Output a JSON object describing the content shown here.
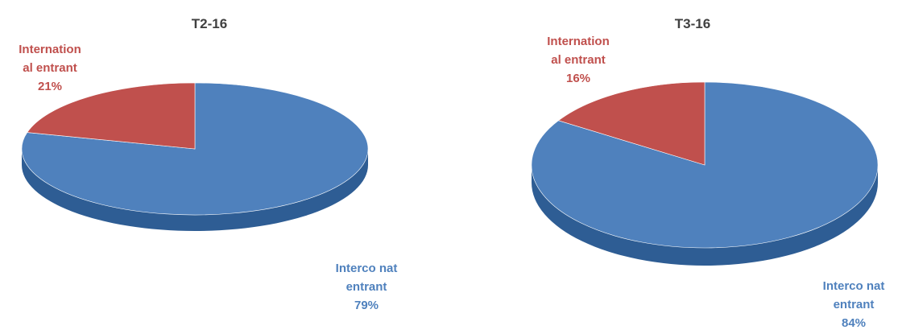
{
  "colors": {
    "blue": "#4f81bd",
    "blue_side": "#2e5d94",
    "red": "#c0504d",
    "red_side": "#8e2f2d",
    "title": "#404040"
  },
  "chart_data": [
    {
      "type": "pie",
      "title": "T2-16",
      "slices": [
        {
          "label_lines": [
            "Interco nat",
            "entrant"
          ],
          "value": 79,
          "pct_label": "79%",
          "color": "#4f81bd",
          "side": "#2e5d94"
        },
        {
          "label_lines": [
            "Internation",
            "al entrant"
          ],
          "value": 21,
          "pct_label": "21%",
          "color": "#c0504d",
          "side": "#8e2f2d"
        }
      ]
    },
    {
      "type": "pie",
      "title": "T3-16",
      "slices": [
        {
          "label_lines": [
            "Interco nat",
            "entrant"
          ],
          "value": 84,
          "pct_label": "84%",
          "color": "#4f81bd",
          "side": "#2e5d94"
        },
        {
          "label_lines": [
            "Internation",
            "al entrant"
          ],
          "value": 16,
          "pct_label": "16%",
          "color": "#c0504d",
          "side": "#8e2f2d"
        }
      ]
    }
  ]
}
